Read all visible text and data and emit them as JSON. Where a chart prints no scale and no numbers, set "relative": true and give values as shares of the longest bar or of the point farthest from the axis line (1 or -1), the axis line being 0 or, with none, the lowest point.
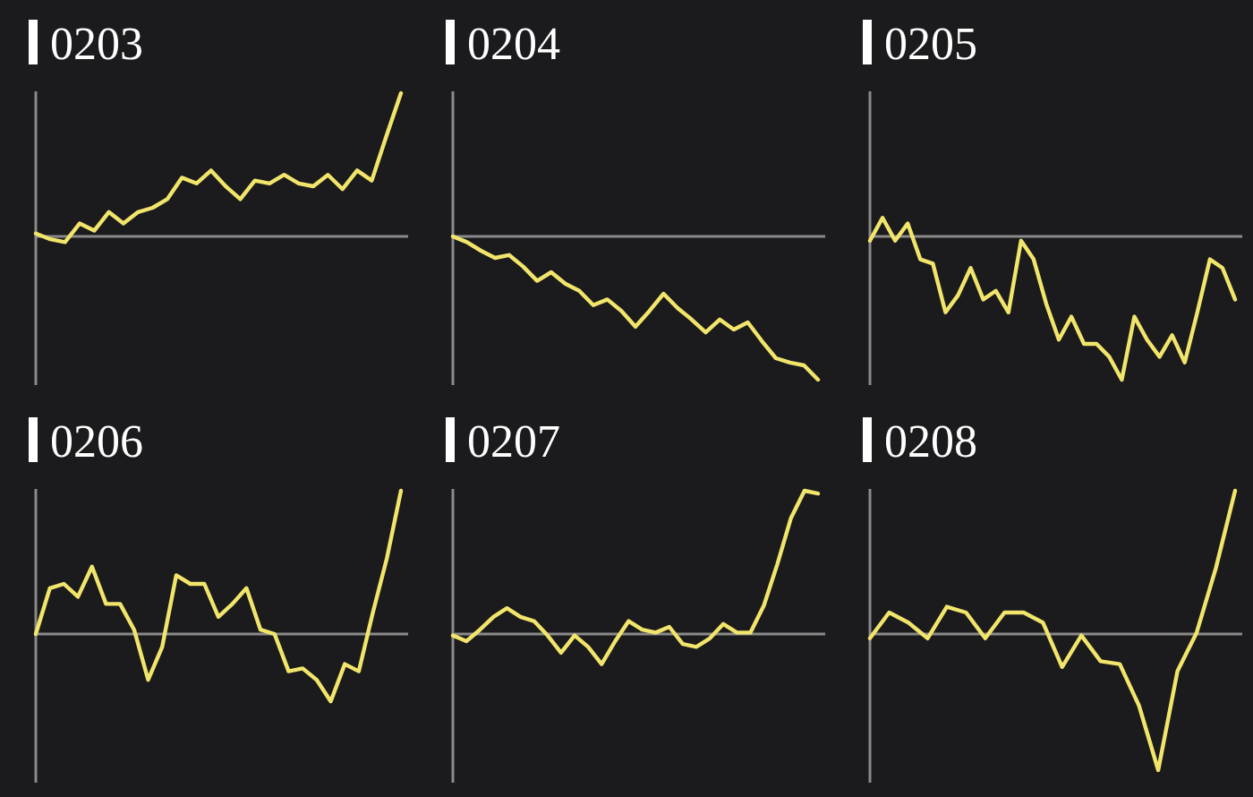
{
  "chart_data": [
    {
      "type": "line",
      "title": "0203",
      "relative": true,
      "categories": [
        null,
        null,
        null,
        null,
        null,
        null,
        null,
        null,
        null,
        null,
        null,
        null,
        null,
        null,
        null,
        null,
        null,
        null,
        null,
        null,
        null,
        null,
        null,
        null,
        null,
        null
      ],
      "series": [
        {
          "color": "#f2e56b",
          "values": [
            0.02,
            -0.02,
            -0.04,
            0.09,
            0.04,
            0.17,
            0.09,
            0.17,
            0.2,
            0.26,
            0.41,
            0.37,
            0.46,
            0.35,
            0.26,
            0.39,
            0.37,
            0.43,
            0.37,
            0.35,
            0.43,
            0.33,
            0.46,
            0.39,
            0.7,
            1
          ]
        }
      ]
    },
    {
      "type": "line",
      "title": "0204",
      "relative": true,
      "categories": [
        null,
        null,
        null,
        null,
        null,
        null,
        null,
        null,
        null,
        null,
        null,
        null,
        null,
        null,
        null,
        null,
        null,
        null,
        null,
        null,
        null,
        null,
        null,
        null,
        null,
        null,
        null
      ],
      "series": [
        {
          "color": "#f2e56b",
          "values": [
            0,
            -0.04,
            -0.1,
            -0.15,
            -0.13,
            -0.21,
            -0.31,
            -0.25,
            -0.33,
            -0.38,
            -0.48,
            -0.44,
            -0.52,
            -0.63,
            -0.52,
            -0.4,
            -0.5,
            -0.58,
            -0.67,
            -0.58,
            -0.65,
            -0.6,
            -0.73,
            -0.85,
            -0.88,
            -0.9,
            -1
          ]
        }
      ]
    },
    {
      "type": "line",
      "title": "0205",
      "relative": true,
      "categories": [
        null,
        null,
        null,
        null,
        null,
        null,
        null,
        null,
        null,
        null,
        null,
        null,
        null,
        null,
        null,
        null,
        null,
        null,
        null,
        null,
        null,
        null,
        null,
        null,
        null,
        null,
        null,
        null,
        null,
        null
      ],
      "series": [
        {
          "color": "#f2e56b",
          "values": [
            -0.03,
            0.13,
            -0.03,
            0.09,
            -0.16,
            -0.19,
            -0.53,
            -0.41,
            -0.22,
            -0.44,
            -0.38,
            -0.53,
            -0.03,
            -0.16,
            -0.47,
            -0.72,
            -0.56,
            -0.75,
            -0.75,
            -0.84,
            -1,
            -0.56,
            -0.72,
            -0.84,
            -0.69,
            -0.88,
            -0.53,
            -0.16,
            -0.22,
            -0.44
          ]
        }
      ]
    },
    {
      "type": "line",
      "title": "0206",
      "relative": true,
      "categories": [
        null,
        null,
        null,
        null,
        null,
        null,
        null,
        null,
        null,
        null,
        null,
        null,
        null,
        null,
        null,
        null,
        null,
        null,
        null,
        null,
        null,
        null,
        null,
        null,
        null,
        null,
        null
      ],
      "series": [
        {
          "color": "#f2e56b",
          "values": [
            0,
            0.32,
            0.35,
            0.26,
            0.47,
            0.21,
            0.21,
            0.03,
            -0.32,
            -0.09,
            0.41,
            0.35,
            0.35,
            0.12,
            0.21,
            0.32,
            0.03,
            0,
            -0.26,
            -0.24,
            -0.32,
            -0.47,
            -0.21,
            -0.26,
            0.15,
            0.53,
            1
          ]
        }
      ]
    },
    {
      "type": "line",
      "title": "0207",
      "relative": true,
      "categories": [
        null,
        null,
        null,
        null,
        null,
        null,
        null,
        null,
        null,
        null,
        null,
        null,
        null,
        null,
        null,
        null,
        null,
        null,
        null,
        null,
        null,
        null,
        null,
        null,
        null,
        null,
        null,
        null
      ],
      "series": [
        {
          "color": "#f2e56b",
          "values": [
            -0.01,
            -0.05,
            0.03,
            0.12,
            0.18,
            0.12,
            0.09,
            -0.01,
            -0.13,
            -0.01,
            -0.09,
            -0.21,
            -0.05,
            0.09,
            0.03,
            0.01,
            0.05,
            -0.07,
            -0.09,
            -0.03,
            0.07,
            0.01,
            0.01,
            0.2,
            0.49,
            0.81,
            1,
            0.98
          ]
        }
      ]
    },
    {
      "type": "line",
      "title": "0208",
      "relative": true,
      "categories": [
        null,
        null,
        null,
        null,
        null,
        null,
        null,
        null,
        null,
        null,
        null,
        null,
        null,
        null,
        null,
        null,
        null,
        null,
        null,
        null
      ],
      "series": [
        {
          "color": "#f2e56b",
          "values": [
            -0.03,
            0.15,
            0.08,
            -0.03,
            0.19,
            0.15,
            -0.03,
            0.15,
            0.15,
            0.08,
            -0.23,
            -0.01,
            -0.19,
            -0.21,
            -0.5,
            -0.95,
            -0.26,
            0.01,
            0.46,
            1
          ]
        }
      ]
    }
  ]
}
